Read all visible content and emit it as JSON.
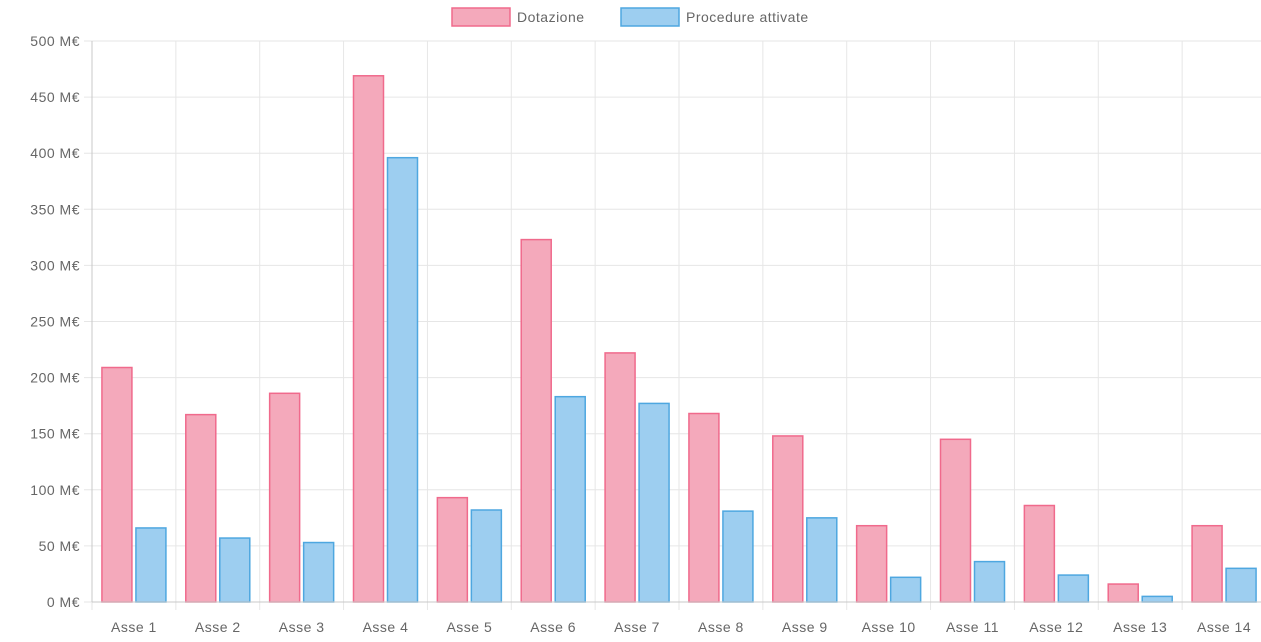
{
  "chart_data": {
    "type": "bar",
    "categories": [
      "Asse 1",
      "Asse 2",
      "Asse 3",
      "Asse 4",
      "Asse 5",
      "Asse 6",
      "Asse 7",
      "Asse 8",
      "Asse 9",
      "Asse 10",
      "Asse 11",
      "Asse 12",
      "Asse 13",
      "Asse 14"
    ],
    "series": [
      {
        "name": "Dotazione",
        "color_fill": "#f4a9bb",
        "color_border": "#f06a8c",
        "values": [
          209,
          167,
          186,
          469,
          93,
          323,
          222,
          168,
          148,
          68,
          145,
          86,
          16,
          68
        ]
      },
      {
        "name": "Procedure attivate",
        "color_fill": "#9dcef0",
        "color_border": "#4ea7e0",
        "values": [
          66,
          57,
          53,
          396,
          82,
          183,
          177,
          81,
          75,
          22,
          36,
          24,
          5,
          30
        ]
      }
    ],
    "y_ticks": [
      "0 M€",
      "50 M€",
      "100 M€",
      "150 M€",
      "200 M€",
      "250 M€",
      "300 M€",
      "350 M€",
      "400 M€",
      "450 M€",
      "500 M€"
    ],
    "ylim": [
      0,
      500
    ],
    "y_step": 50,
    "grid": true,
    "legend_position": "top-center",
    "title": "",
    "xlabel": "",
    "ylabel": ""
  }
}
